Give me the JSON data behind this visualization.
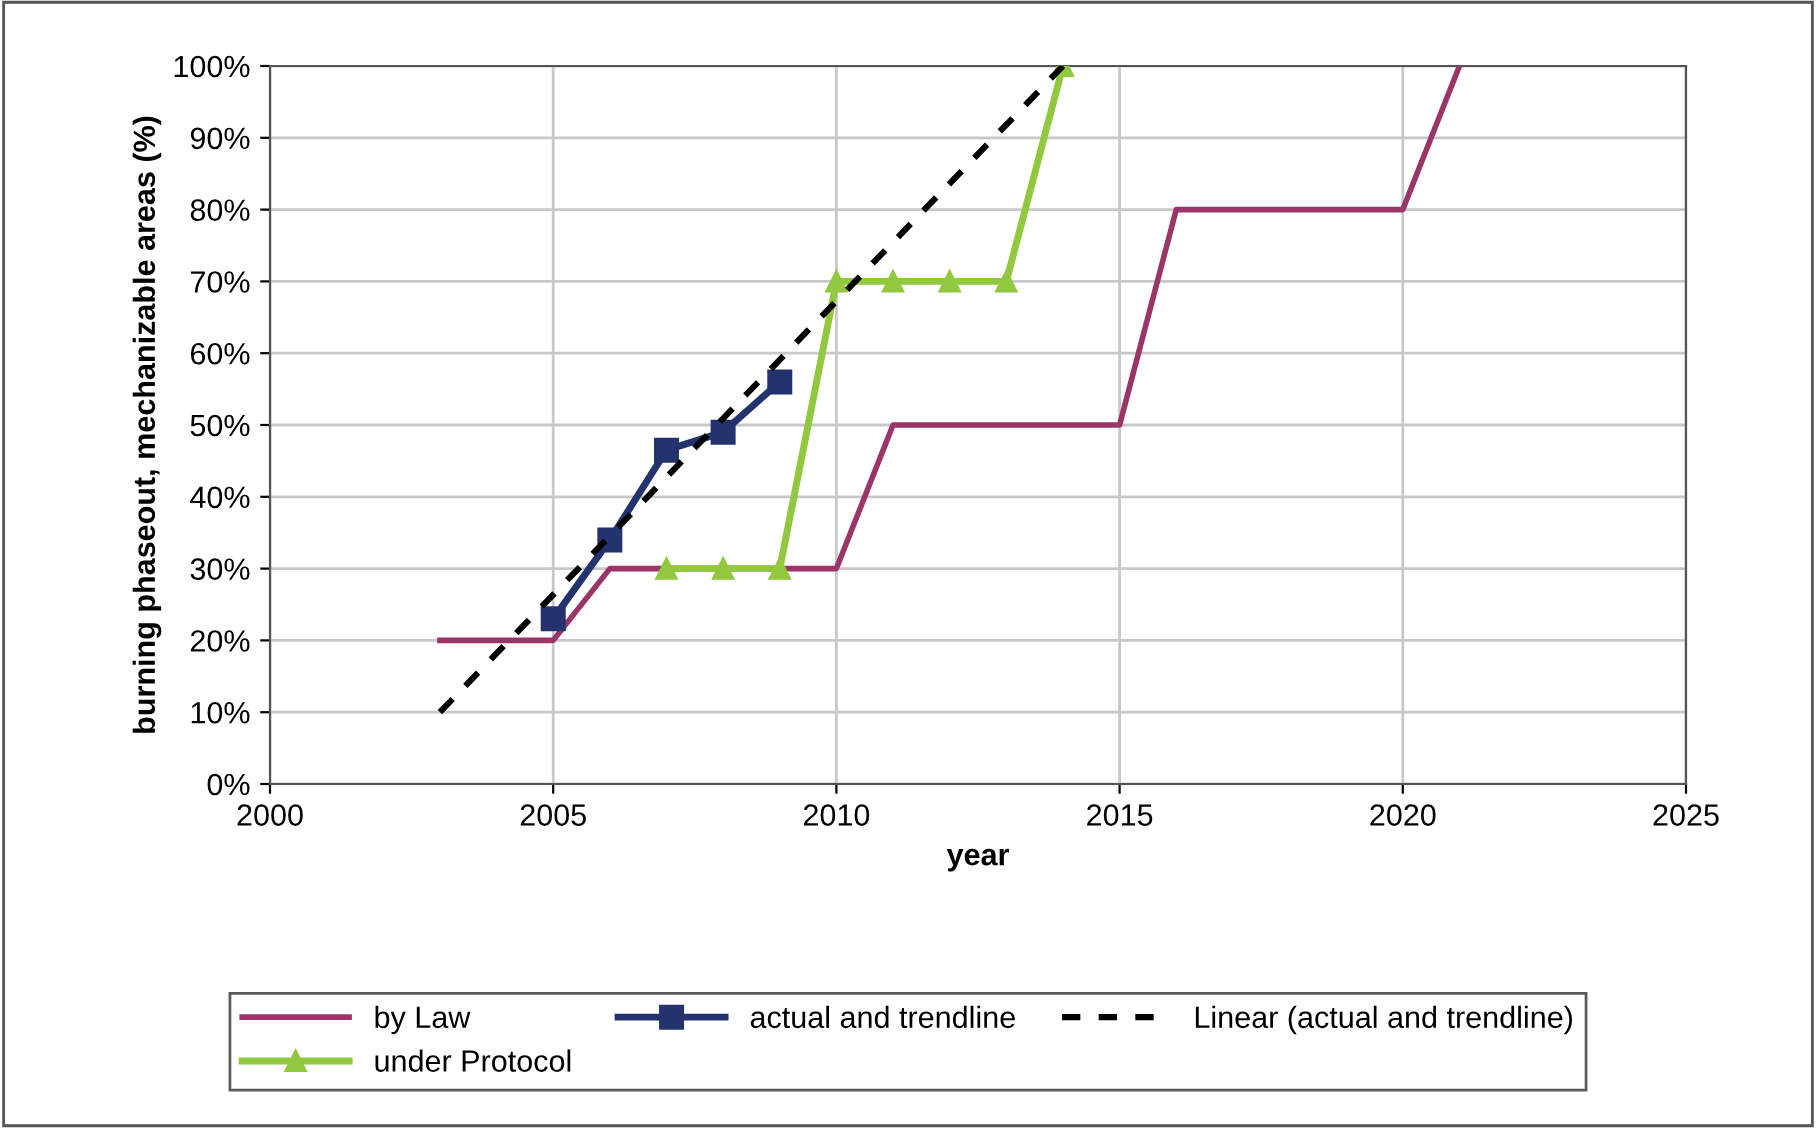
{
  "chart_data": {
    "type": "line",
    "xlabel": "year",
    "ylabel": "burning phaseout, mechanizable areas (%)",
    "xlim": [
      2000,
      2025
    ],
    "xticks": [
      2000,
      2005,
      2010,
      2015,
      2020,
      2025
    ],
    "ylim": [
      0,
      100
    ],
    "yticks": [
      {
        "value": 0,
        "label": "0%"
      },
      {
        "value": 10,
        "label": "10%"
      },
      {
        "value": 20,
        "label": "20%"
      },
      {
        "value": 30,
        "label": "30%"
      },
      {
        "value": 40,
        "label": "40%"
      },
      {
        "value": 50,
        "label": "50%"
      },
      {
        "value": 60,
        "label": "60%"
      },
      {
        "value": 70,
        "label": "70%"
      },
      {
        "value": 80,
        "label": "80%"
      },
      {
        "value": 90,
        "label": "90%"
      },
      {
        "value": 100,
        "label": "100%"
      }
    ],
    "grid": true,
    "legend": "bottom",
    "series": [
      {
        "name": "by Law",
        "color": "#9b3468",
        "marker": "none",
        "line_style": "solid",
        "x": [
          2003,
          2004,
          2005,
          2006,
          2007,
          2008,
          2009,
          2010,
          2011,
          2012,
          2013,
          2014,
          2015,
          2016,
          2017,
          2018,
          2019,
          2020,
          2021
        ],
        "values": [
          20,
          20,
          20,
          30,
          30,
          30,
          30,
          30,
          50,
          50,
          50,
          50,
          50,
          80,
          80,
          80,
          80,
          80,
          100
        ]
      },
      {
        "name": "under Protocol",
        "color": "#92c83e",
        "marker": "triangle",
        "line_style": "solid",
        "x": [
          2007,
          2008,
          2009,
          2010,
          2011,
          2012,
          2013,
          2014
        ],
        "values": [
          30,
          30,
          30,
          70,
          70,
          70,
          70,
          100
        ]
      },
      {
        "name": "actual and trendline",
        "color": "#24336e",
        "marker": "square",
        "line_style": "solid",
        "x": [
          2005,
          2006,
          2007,
          2008,
          2009
        ],
        "values": [
          23,
          34,
          46.5,
          49,
          56
        ]
      },
      {
        "name": "Linear (actual and trendline)",
        "color": "#000000",
        "marker": "none",
        "line_style": "dashed",
        "x": [
          2003,
          2014
        ],
        "values": [
          10,
          100
        ]
      }
    ]
  }
}
